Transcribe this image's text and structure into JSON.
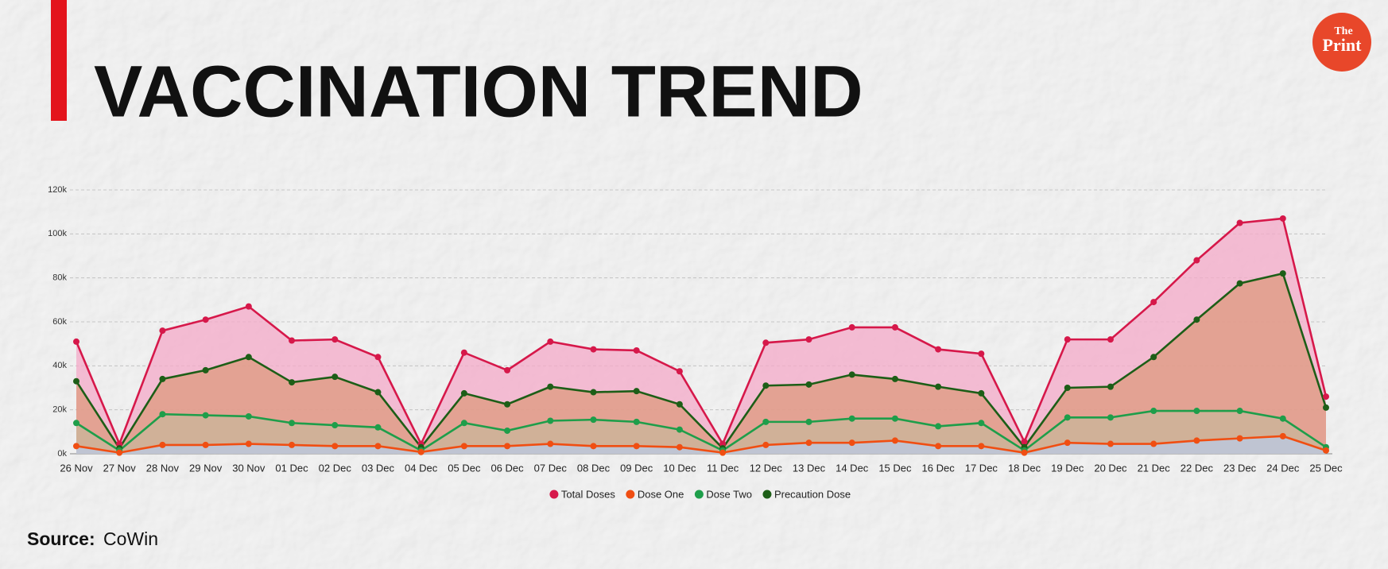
{
  "chart_data": {
    "type": "area",
    "title": "VACCINATION TREND",
    "source_label": "Source:",
    "source": "CoWin",
    "categories": [
      "26 Nov",
      "27 Nov",
      "28 Nov",
      "29 Nov",
      "30 Nov",
      "01 Dec",
      "02 Dec",
      "03 Dec",
      "04 Dec",
      "05 Dec",
      "06 Dec",
      "07 Dec",
      "08 Dec",
      "09 Dec",
      "10 Dec",
      "11 Dec",
      "12 Dec",
      "13 Dec",
      "14 Dec",
      "15 Dec",
      "16 Dec",
      "17 Dec",
      "18 Dec",
      "19 Dec",
      "20 Dec",
      "21 Dec",
      "22 Dec",
      "23 Dec",
      "24 Dec",
      "25 Dec"
    ],
    "series": [
      {
        "name": "Total Doses",
        "color": "#d6184a",
        "fill": "#f4a9c8",
        "values": [
          51000,
          4500,
          56000,
          61000,
          67000,
          51500,
          52000,
          44000,
          4500,
          46000,
          38000,
          51000,
          47500,
          47000,
          37500,
          4500,
          50500,
          52000,
          57500,
          57500,
          47500,
          45500,
          5500,
          52000,
          52000,
          69000,
          88000,
          105000,
          107000,
          26000
        ]
      },
      {
        "name": "Dose One",
        "color": "#f04e12",
        "fill": "#b9cbe6",
        "values": [
          3500,
          500,
          4000,
          4000,
          4500,
          4000,
          3500,
          3500,
          800,
          3500,
          3500,
          4500,
          3500,
          3500,
          3000,
          500,
          4000,
          5000,
          5000,
          6000,
          3500,
          3500,
          500,
          5000,
          4500,
          4500,
          6000,
          7000,
          8000,
          1500
        ]
      },
      {
        "name": "Dose Two",
        "color": "#1e9e4a",
        "fill": "#c9b59a",
        "values": [
          14000,
          1500,
          18000,
          17500,
          17000,
          14000,
          13000,
          12000,
          1500,
          14000,
          10500,
          15000,
          15500,
          14500,
          11000,
          1500,
          14500,
          14500,
          16000,
          16000,
          12500,
          14000,
          1500,
          16500,
          16500,
          19500,
          19500,
          19500,
          16000,
          3000
        ]
      },
      {
        "name": "Precaution Dose",
        "color": "#1d5e17",
        "fill": "#dd9a7e",
        "values": [
          33000,
          2500,
          34000,
          38000,
          44000,
          32500,
          35000,
          28000,
          3000,
          27500,
          22500,
          30500,
          28000,
          28500,
          22500,
          2500,
          31000,
          31500,
          36000,
          34000,
          30500,
          27500,
          3000,
          30000,
          30500,
          44000,
          61000,
          77500,
          82000,
          21000
        ]
      }
    ],
    "ylim": [
      0,
      120000
    ],
    "yticks": [
      {
        "value": 0,
        "label": "0k"
      },
      {
        "value": 20000,
        "label": "20k"
      },
      {
        "value": 40000,
        "label": "40k"
      },
      {
        "value": 60000,
        "label": "60k"
      },
      {
        "value": 80000,
        "label": "80k"
      },
      {
        "value": 100000,
        "label": "100k"
      },
      {
        "value": 120000,
        "label": "120k"
      }
    ],
    "grid": true,
    "legend": "bottom"
  },
  "logo": {
    "line1": "The",
    "line2": "Print"
  }
}
